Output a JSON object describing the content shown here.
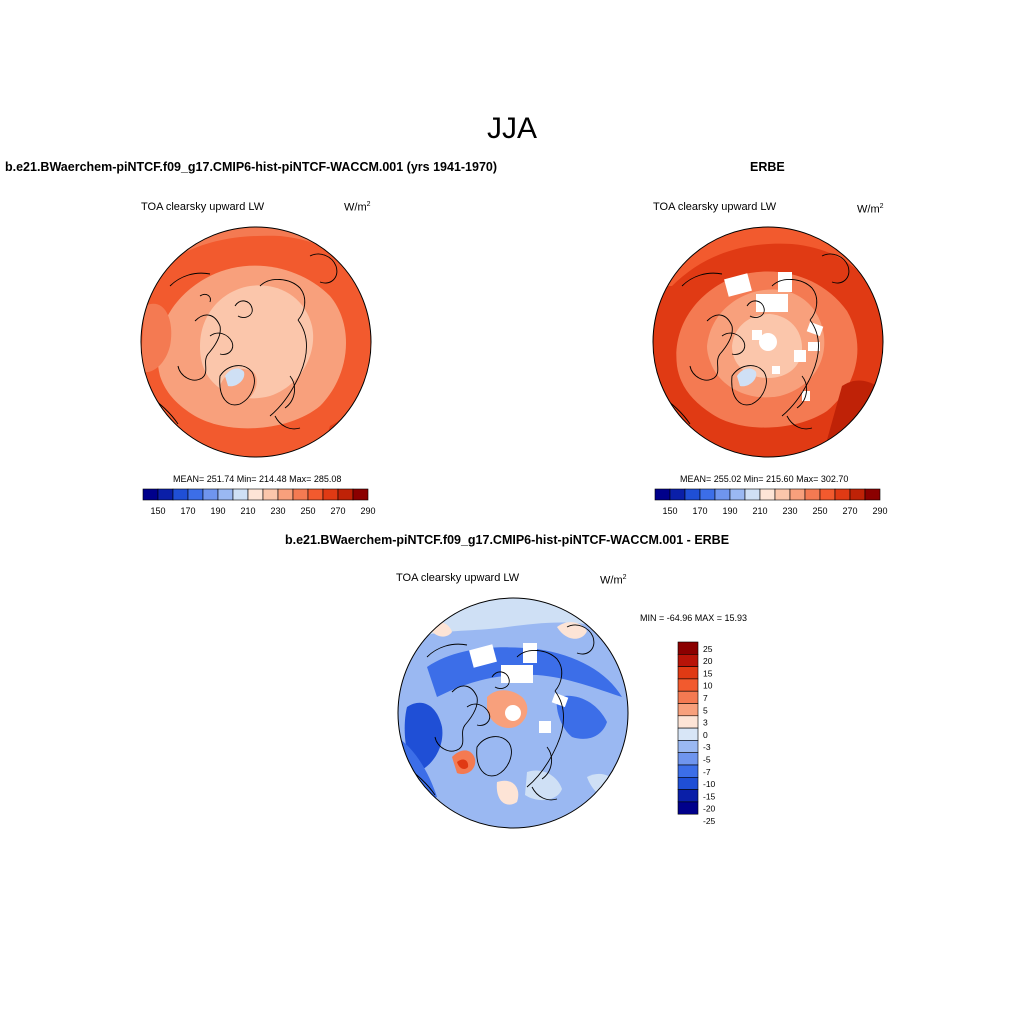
{
  "page_title": "JJA",
  "panels": [
    {
      "id": "model",
      "case_title": "b.e21.BWaerchem-piNTCF.f09_g17.CMIP6-hist-piNTCF-WACCM.001 (yrs 1941-1970)",
      "variable": "TOA clearsky upward LW",
      "units_base": "W/m",
      "units_exp": "2",
      "stats": "MEAN= 251.74  Min= 214.48  Max= 285.08",
      "colorbar": {
        "colors": [
          "#00008b",
          "#0a1fa8",
          "#1f4fd6",
          "#3c6ee8",
          "#6f95ee",
          "#9ab8f2",
          "#cfe0f5",
          "#fde4d6",
          "#fbc6ab",
          "#f8a07c",
          "#f47a52",
          "#f25a2e",
          "#e03a14",
          "#bf2207",
          "#8b0000"
        ],
        "tick_labels": [
          "150",
          "170",
          "190",
          "210",
          "230",
          "250",
          "270",
          "290"
        ]
      },
      "map": {
        "projection": "north-polar-stereographic",
        "dominant_colors": [
          "#f25a2e",
          "#f47a52",
          "#f8a07c",
          "#fbc6ab"
        ]
      }
    },
    {
      "id": "obs",
      "case_title": "ERBE",
      "variable": "TOA clearsky upward LW",
      "units_base": "W/m",
      "units_exp": "2",
      "stats": "MEAN= 255.02  Min= 215.60  Max= 302.70",
      "colorbar": {
        "colors": [
          "#00008b",
          "#0a1fa8",
          "#1f4fd6",
          "#3c6ee8",
          "#6f95ee",
          "#9ab8f2",
          "#cfe0f5",
          "#fde4d6",
          "#fbc6ab",
          "#f8a07c",
          "#f47a52",
          "#f25a2e",
          "#e03a14",
          "#bf2207",
          "#8b0000"
        ],
        "tick_labels": [
          "150",
          "170",
          "190",
          "210",
          "230",
          "250",
          "270",
          "290"
        ]
      },
      "map": {
        "projection": "north-polar-stereographic",
        "dominant_colors": [
          "#e03a14",
          "#f25a2e",
          "#f47a52",
          "#fbc6ab"
        ]
      }
    },
    {
      "id": "diff",
      "case_title": "b.e21.BWaerchem-piNTCF.f09_g17.CMIP6-hist-piNTCF-WACCM.001 - ERBE",
      "variable": "TOA clearsky upward LW",
      "units_base": "W/m",
      "units_exp": "2",
      "minmax": "MIN = -64.96 MAX =  15.93",
      "colorbar": {
        "colors": [
          "#8b0000",
          "#b81408",
          "#e03a14",
          "#f25a2e",
          "#f47a52",
          "#f8a07c",
          "#fde4d6",
          "#d8e6f7",
          "#9ab8f2",
          "#6f95ee",
          "#3c6ee8",
          "#1f4fd6",
          "#0a1fa8",
          "#00008b"
        ],
        "tick_labels": [
          "25",
          "20",
          "15",
          "10",
          "7",
          "5",
          "3",
          "0",
          "-3",
          "-5",
          "-7",
          "-10",
          "-15",
          "-20",
          "-25"
        ]
      },
      "map": {
        "projection": "north-polar-stereographic",
        "dominant_colors": [
          "#6f95ee",
          "#9ab8f2",
          "#3c6ee8",
          "#cfe0f5"
        ]
      }
    }
  ]
}
